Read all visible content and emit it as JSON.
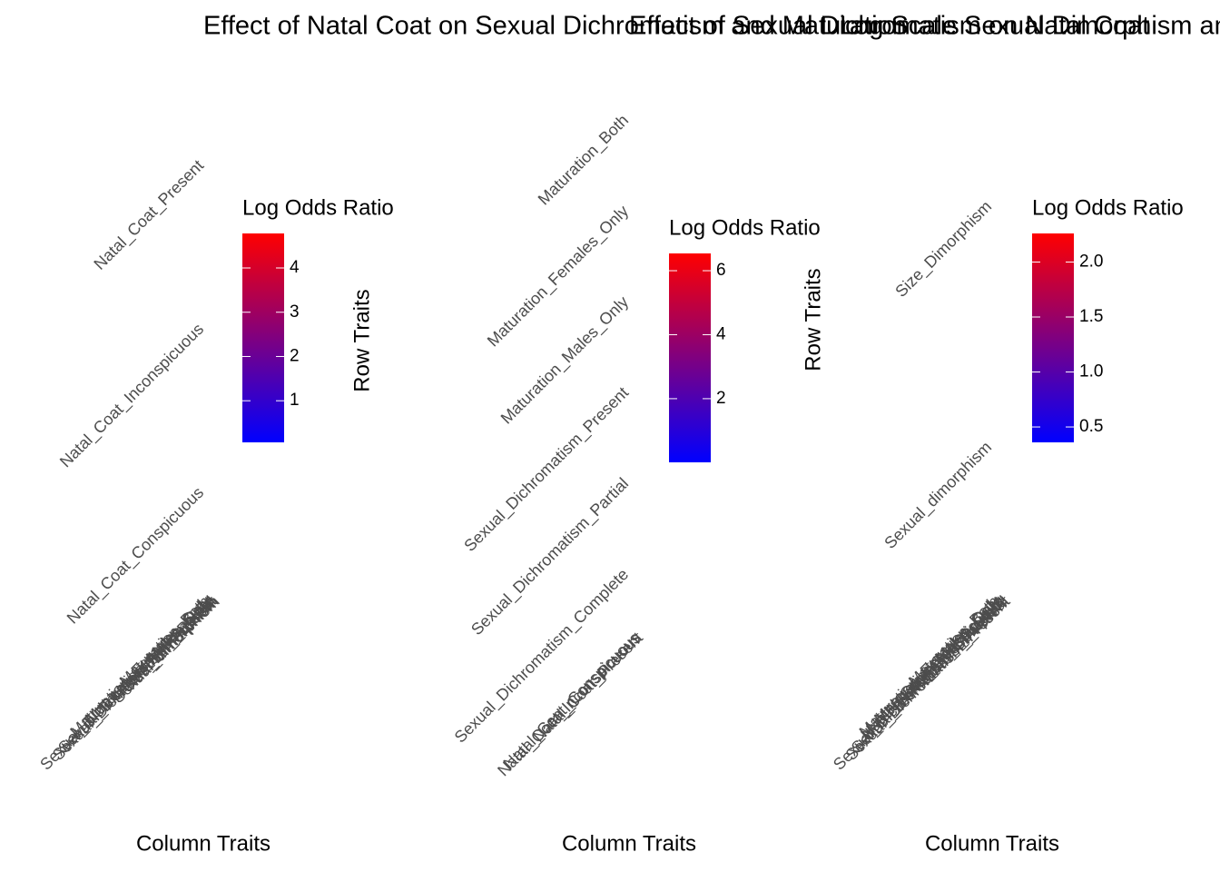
{
  "chart_data": [
    {
      "type": "heatmap",
      "title": "Effect of Natal Coat on Sexual Dichromatism and Maturation",
      "x_label": "Column Traits",
      "x_categories": [
        "Maturation_Both",
        "Maturation_Females_Only",
        "Maturation_Males_Only",
        "Sexual_Dichromatism_Complete",
        "Sexual_Dichromatism_Partial",
        "Sexual_Dichromatism_Present",
        "Size_Dimorphism",
        "Sexual_dimorphism"
      ],
      "y_categories": [
        "Natal_Coat_Conspicuous",
        "Natal_Coat_Inconspicuous",
        "Natal_Coat_Present"
      ],
      "legend_title": "Log Odds Ratio",
      "clim": [
        0.06,
        4.78
      ],
      "cticks": [
        1,
        2,
        3,
        4
      ],
      "colors": [
        "#0000ff",
        "#ff0000"
      ]
    },
    {
      "type": "heatmap",
      "title": "Effect of Sexual Dichromatism on Natal Coat",
      "x_label": "Column Traits",
      "y_label": "Row Traits",
      "x_categories": [
        "Natal_Coat_Conspicuous",
        "Natal_Coat_Inconspicuous",
        "Natal_Coat_Present"
      ],
      "y_categories": [
        "Sexual_Dichromatism_Complete",
        "Sexual_Dichromatism_Partial",
        "Sexual_Dichromatism_Present",
        "Maturation_Males_Only",
        "Maturation_Females_Only",
        "Maturation_Both"
      ],
      "legend_title": "Log Odds Ratio",
      "clim": [
        0.01,
        6.54
      ],
      "cticks": [
        2,
        4,
        6
      ],
      "colors": [
        "#0000ff",
        "#ff0000"
      ]
    },
    {
      "type": "heatmap",
      "title": "Log Scale Sexual Dimorphism and Natal Coat",
      "x_label": "Column Traits",
      "y_label": "Row Traits",
      "x_categories": [
        "Maturation_Both",
        "Maturation_Females_Only",
        "Maturation_Males_Only",
        "Natal_Coat_Conspicuous",
        "Natal_Coat_Inconspicuous",
        "Natal_Coat_Present",
        "Sexual_Dichromatism_Complete",
        "Sexual_Dichromatism_Partial",
        "Sexual_Dichromatism_Present"
      ],
      "y_categories": [
        "Sexual_dimorphism",
        "Size_Dimorphism"
      ],
      "legend_title": "Log Odds Ratio",
      "clim": [
        0.36,
        2.26
      ],
      "cticks": [
        0.5,
        {
          "value": 1,
          "label": "1.0"
        },
        1.5,
        {
          "value": 2,
          "label": "2.0"
        }
      ],
      "colors": [
        "#0000ff",
        "#ff0000"
      ]
    }
  ]
}
